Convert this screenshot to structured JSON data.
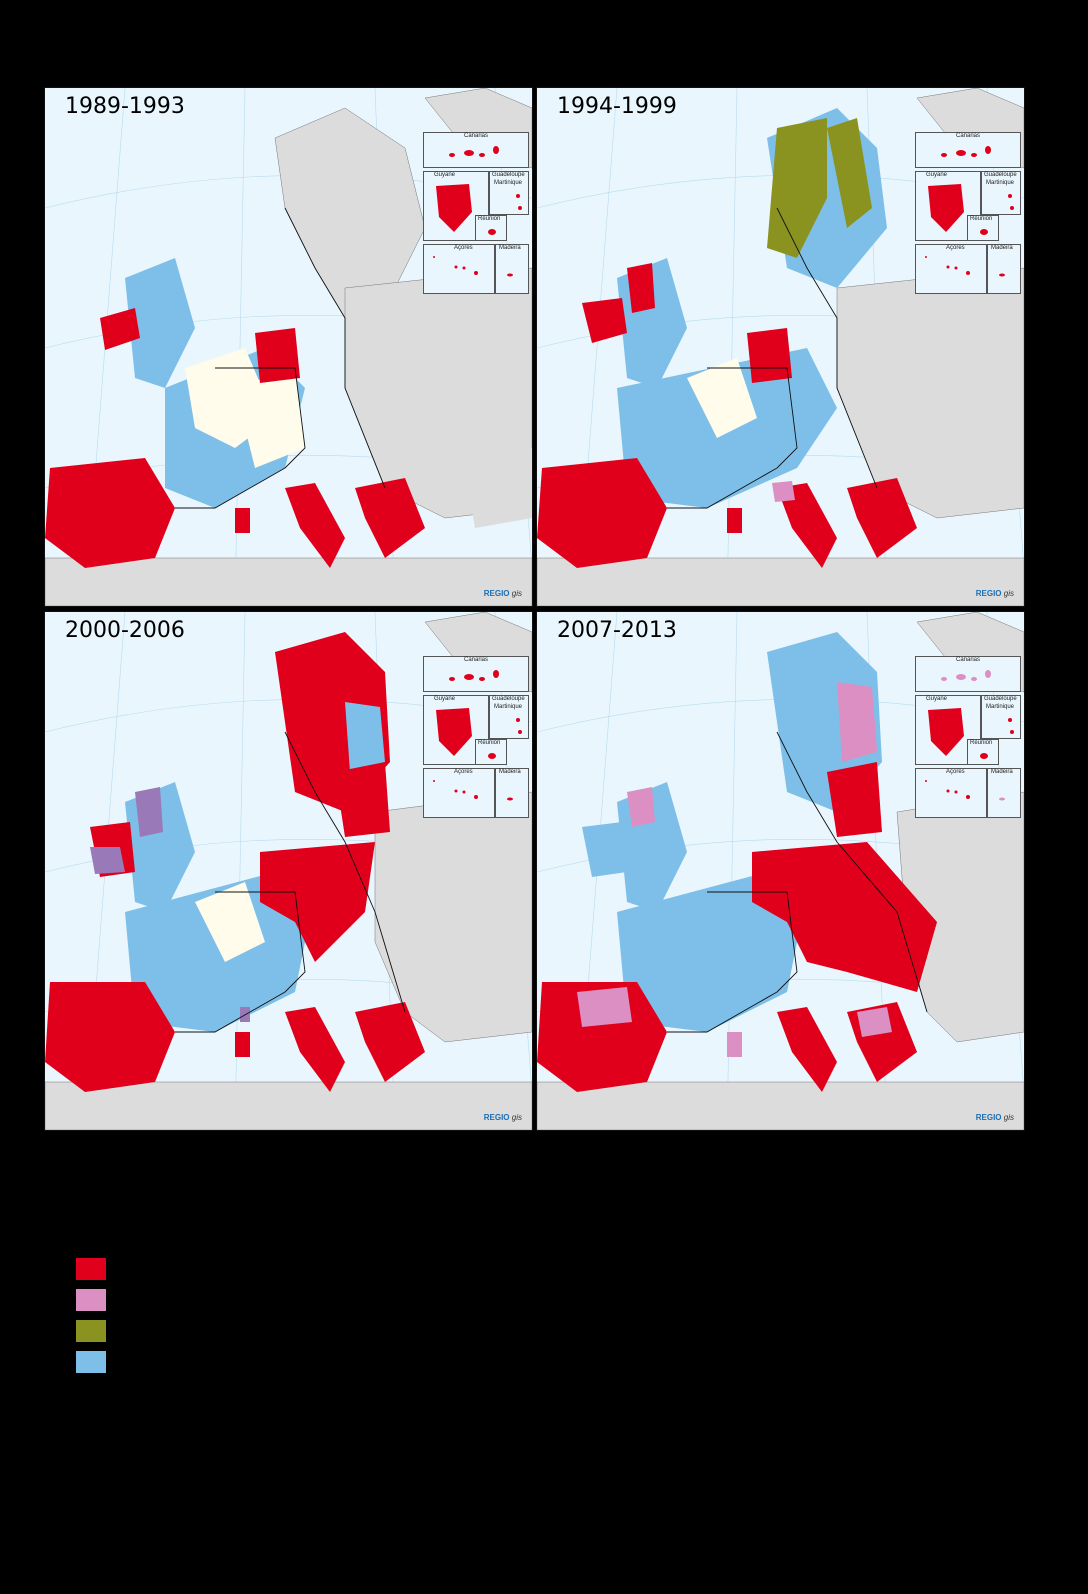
{
  "panels": [
    {
      "period": "1989-1993",
      "logo_main": "REGIO",
      "logo_sub": "gis"
    },
    {
      "period": "1994-1999",
      "logo_main": "REGIO",
      "logo_sub": "gis"
    },
    {
      "period": "2000-2006",
      "logo_main": "REGIO",
      "logo_sub": "gis"
    },
    {
      "period": "2007-2013",
      "logo_main": "REGIO",
      "logo_sub": "gis"
    }
  ],
  "insets": {
    "canarias": "Canarias",
    "guyane": "Guyane",
    "guadeloupe": "Guadeloupe",
    "martinique": "Martinique",
    "reunion": "Réunion",
    "acores": "Açores",
    "madeira": "Madeira"
  },
  "colors": {
    "sea": "#e9f6fd",
    "non_eu": "#dcdcdc",
    "objective1_red": "#e0001b",
    "phasing_pink": "#dc8fc2",
    "objective6_olive": "#8a9220",
    "light_blue": "#7dbfe8",
    "eligible_cream": "#fffcec",
    "purple": "#9a79b8",
    "legend_red": "#e0001b",
    "legend_pink": "#dc8fc2",
    "legend_olive": "#8a9220",
    "legend_blue": "#7dbfe8"
  }
}
